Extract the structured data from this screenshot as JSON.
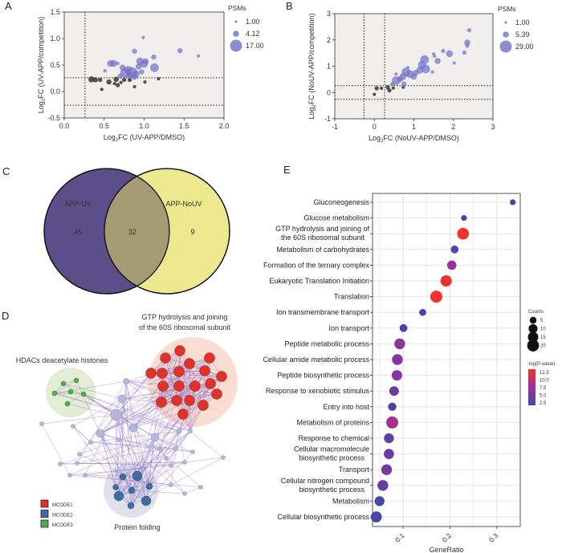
{
  "panels": {
    "A": {
      "letter": "A"
    },
    "B": {
      "letter": "B"
    },
    "C": {
      "letter": "C"
    },
    "D": {
      "letter": "D"
    },
    "E": {
      "letter": "E"
    }
  },
  "colors": {
    "blue_points": "#6f6fc7",
    "dark_points": "#3a3530",
    "venn_left": "#5b4f8a",
    "venn_right": "#ece98e",
    "venn_overlap": "#a49a74",
    "mcode1": "#e0312b",
    "mcode2": "#3e6d9e",
    "mcode3": "#4caf46",
    "network_node": "#b3b8db",
    "edge": "#8d6cbf",
    "grad_low": "#3d4aa3",
    "grad_mid": "#9b2fa0",
    "grad_high": "#f0332a"
  },
  "chart_data": [
    {
      "id": "A",
      "type": "scatter",
      "title": "",
      "xlabel": "Log2FC (UV-APP/DMSO)",
      "ylabel": "Log2FC (UV-APP/competition)",
      "xlim": [
        0,
        2.0
      ],
      "ylim": [
        -0.5,
        1.5
      ],
      "xticks": [
        "0.0",
        "0.5",
        "1.0",
        "1.5",
        "2.0"
      ],
      "yticks": [
        "-0.5",
        "0.0",
        "0.5",
        "1.0",
        "1.5"
      ],
      "thresholds": {
        "x": [
          0.26
        ],
        "y": [
          0.26,
          -0.26
        ]
      },
      "legend": {
        "title": "PSMs",
        "sizes": [
          "1.00",
          "4.12",
          "17.00"
        ],
        "position": "right"
      },
      "points": [
        {
          "x": 0.99,
          "y": 1.02,
          "s": 2,
          "g": "sig"
        },
        {
          "x": 0.88,
          "y": 0.76,
          "s": 4,
          "g": "sig"
        },
        {
          "x": 1.45,
          "y": 0.77,
          "s": 4,
          "g": "sig"
        },
        {
          "x": 1.68,
          "y": 0.67,
          "s": 2,
          "g": "sig"
        },
        {
          "x": 0.58,
          "y": 0.53,
          "s": 6,
          "g": "sig"
        },
        {
          "x": 0.62,
          "y": 0.53,
          "s": 6,
          "g": "sig"
        },
        {
          "x": 0.67,
          "y": 0.53,
          "s": 2,
          "g": "sig"
        },
        {
          "x": 0.51,
          "y": 0.39,
          "s": 2,
          "g": "sig"
        },
        {
          "x": 0.73,
          "y": 0.45,
          "s": 5,
          "g": "sig"
        },
        {
          "x": 0.76,
          "y": 0.35,
          "s": 9,
          "g": "sig"
        },
        {
          "x": 0.8,
          "y": 0.41,
          "s": 7,
          "g": "sig"
        },
        {
          "x": 0.85,
          "y": 0.36,
          "s": 10,
          "g": "sig"
        },
        {
          "x": 0.9,
          "y": 0.33,
          "s": 6,
          "g": "sig"
        },
        {
          "x": 0.93,
          "y": 0.47,
          "s": 5,
          "g": "sig"
        },
        {
          "x": 0.95,
          "y": 0.57,
          "s": 7,
          "g": "sig"
        },
        {
          "x": 1.0,
          "y": 0.52,
          "s": 7,
          "g": "sig"
        },
        {
          "x": 1.02,
          "y": 0.57,
          "s": 5,
          "g": "sig"
        },
        {
          "x": 1.12,
          "y": 0.65,
          "s": 4,
          "g": "sig"
        },
        {
          "x": 1.13,
          "y": 0.45,
          "s": 8,
          "g": "sig"
        },
        {
          "x": 0.97,
          "y": 0.37,
          "s": 4,
          "g": "sig"
        },
        {
          "x": 0.7,
          "y": 0.29,
          "s": 4,
          "g": "sig"
        },
        {
          "x": 0.88,
          "y": 0.27,
          "s": 4,
          "g": "sig"
        },
        {
          "x": 0.82,
          "y": 0.31,
          "s": 6,
          "g": "sig"
        },
        {
          "x": 0.34,
          "y": 0.23,
          "s": 5,
          "g": "ns"
        },
        {
          "x": 0.39,
          "y": 0.22,
          "s": 4,
          "g": "ns"
        },
        {
          "x": 0.45,
          "y": 0.22,
          "s": 3,
          "g": "ns"
        },
        {
          "x": 0.56,
          "y": 0.18,
          "s": 4,
          "g": "ns"
        },
        {
          "x": 0.63,
          "y": 0.15,
          "s": 2,
          "g": "ns"
        },
        {
          "x": 0.65,
          "y": 0.23,
          "s": 4,
          "g": "ns"
        },
        {
          "x": 0.67,
          "y": 0.12,
          "s": 3,
          "g": "ns"
        },
        {
          "x": 0.71,
          "y": 0.17,
          "s": 2,
          "g": "ns"
        },
        {
          "x": 0.75,
          "y": 0.22,
          "s": 3,
          "g": "ns"
        },
        {
          "x": 0.82,
          "y": 0.22,
          "s": 3,
          "g": "ns"
        },
        {
          "x": 0.47,
          "y": 0.04,
          "s": 2,
          "g": "ns"
        },
        {
          "x": 0.88,
          "y": 0.09,
          "s": 2,
          "g": "ns"
        },
        {
          "x": 1.01,
          "y": 0.18,
          "s": 2,
          "g": "ns"
        },
        {
          "x": 1.18,
          "y": 0.24,
          "s": 2,
          "g": "ns"
        }
      ]
    },
    {
      "id": "B",
      "type": "scatter",
      "title": "",
      "xlabel": "Log2FC (NoUV-APP/DMSO)",
      "ylabel": "Log2FC (NoUV-APP/competition)",
      "xlim": [
        -1,
        3
      ],
      "ylim": [
        -1,
        3
      ],
      "xticks": [
        "-1",
        "0",
        "1",
        "2",
        "3"
      ],
      "yticks": [
        "-1",
        "0",
        "1",
        "2",
        "3"
      ],
      "thresholds": {
        "x": [
          -0.26,
          0.26
        ],
        "y": [
          0.26,
          -0.26
        ]
      },
      "legend": {
        "title": "PSMs",
        "sizes": [
          "1.00",
          "5.39",
          "29.00"
        ],
        "position": "right"
      },
      "points": [
        {
          "x": 2.4,
          "y": 2.37,
          "s": 3,
          "g": "sig"
        },
        {
          "x": 2.35,
          "y": 1.9,
          "s": 5,
          "g": "sig"
        },
        {
          "x": 2.35,
          "y": 1.78,
          "s": 3,
          "g": "sig"
        },
        {
          "x": 2.28,
          "y": 1.52,
          "s": 3,
          "g": "sig"
        },
        {
          "x": 2.02,
          "y": 1.12,
          "s": 2,
          "g": "sig"
        },
        {
          "x": 1.9,
          "y": 1.48,
          "s": 6,
          "g": "sig"
        },
        {
          "x": 1.74,
          "y": 1.58,
          "s": 3,
          "g": "sig"
        },
        {
          "x": 1.5,
          "y": 1.47,
          "s": 2,
          "g": "sig"
        },
        {
          "x": 1.52,
          "y": 1.38,
          "s": 2,
          "g": "sig"
        },
        {
          "x": 1.6,
          "y": 1.2,
          "s": 5,
          "g": "sig"
        },
        {
          "x": 1.47,
          "y": 0.78,
          "s": 2,
          "g": "sig"
        },
        {
          "x": 1.27,
          "y": 1.25,
          "s": 8,
          "g": "sig"
        },
        {
          "x": 1.2,
          "y": 1.05,
          "s": 7,
          "g": "sig"
        },
        {
          "x": 1.3,
          "y": 0.9,
          "s": 8,
          "g": "sig"
        },
        {
          "x": 1.15,
          "y": 0.85,
          "s": 6,
          "g": "sig"
        },
        {
          "x": 1.05,
          "y": 0.75,
          "s": 5,
          "g": "sig"
        },
        {
          "x": 0.9,
          "y": 0.7,
          "s": 7,
          "g": "sig"
        },
        {
          "x": 0.8,
          "y": 0.78,
          "s": 8,
          "g": "sig"
        },
        {
          "x": 0.72,
          "y": 0.6,
          "s": 6,
          "g": "sig"
        },
        {
          "x": 0.55,
          "y": 0.45,
          "s": 8,
          "g": "sig"
        },
        {
          "x": 0.65,
          "y": 0.5,
          "s": 5,
          "g": "sig"
        },
        {
          "x": 0.85,
          "y": 0.95,
          "s": 2,
          "g": "sig"
        },
        {
          "x": 0.55,
          "y": 0.7,
          "s": 2,
          "g": "sig"
        },
        {
          "x": 0.45,
          "y": 0.32,
          "s": 3,
          "g": "sig"
        },
        {
          "x": 0.75,
          "y": 0.32,
          "s": 4,
          "g": "sig"
        },
        {
          "x": 1.0,
          "y": 0.6,
          "s": 5,
          "g": "sig"
        },
        {
          "x": 0.06,
          "y": 0.16,
          "s": 3,
          "g": "ns"
        },
        {
          "x": 0.18,
          "y": 0.16,
          "s": 2,
          "g": "ns"
        },
        {
          "x": 0.34,
          "y": 0.2,
          "s": 3,
          "g": "ns"
        },
        {
          "x": 0.38,
          "y": 0.08,
          "s": 3,
          "g": "ns"
        },
        {
          "x": 0.48,
          "y": 0.17,
          "s": 2,
          "g": "ns"
        },
        {
          "x": 0.73,
          "y": 0.2,
          "s": 2,
          "g": "ns"
        },
        {
          "x": 0.0,
          "y": -0.07,
          "s": 2,
          "g": "ns"
        }
      ]
    },
    {
      "id": "C",
      "type": "venn",
      "sets": [
        {
          "name": "APP-UV",
          "only": 45
        },
        {
          "name": "APP-NoUV",
          "only": 9
        }
      ],
      "overlap": 32,
      "labels": {
        "left": "APP-UV",
        "right": "APP-NoUV",
        "left_count": "45",
        "overlap_count": "32",
        "right_count": "9"
      }
    },
    {
      "id": "E",
      "type": "scatter",
      "title": "",
      "xlabel": "GeneRatio",
      "ylabel": "",
      "xlim": [
        0.035,
        0.35
      ],
      "xticks": [
        "0.1",
        "0.2",
        "0.3"
      ],
      "grid": true,
      "legend_counts": {
        "title": "Counts",
        "values": [
          "5",
          "10",
          "15",
          "20"
        ],
        "position": "right"
      },
      "legend_color": {
        "title": "-log(P-value)",
        "ticks": [
          "12.5",
          "10.0",
          "7.5",
          "5.0",
          "2.5"
        ],
        "range": [
          2.5,
          13.5
        ],
        "position": "right"
      },
      "terms": [
        {
          "label": "Gluconeogenesis",
          "ratio": 0.334,
          "count": 3,
          "logp": 3.0
        },
        {
          "label": "Glucose metabolism",
          "ratio": 0.23,
          "count": 3,
          "logp": 3.0
        },
        {
          "label": "GTP hydrolysis and joining of\nthe 60S ribosomal subunit",
          "ratio": 0.228,
          "count": 20,
          "logp": 13.0
        },
        {
          "label": "Metabolism of carbohydrates",
          "ratio": 0.21,
          "count": 7,
          "logp": 3.8
        },
        {
          "label": "Formation of the ternary complex",
          "ratio": 0.204,
          "count": 11,
          "logp": 7.5
        },
        {
          "label": "Eukaryotic Translation Initiation",
          "ratio": 0.192,
          "count": 18,
          "logp": 12.5
        },
        {
          "label": "Translation",
          "ratio": 0.171,
          "count": 21,
          "logp": 13.0
        },
        {
          "label": "Ion transmembrane transport",
          "ratio": 0.142,
          "count": 5,
          "logp": 3.0
        },
        {
          "label": "Ion transport",
          "ratio": 0.101,
          "count": 7,
          "logp": 3.0
        },
        {
          "label": "Peptide metabolic process",
          "ratio": 0.093,
          "count": 16,
          "logp": 7.0
        },
        {
          "label": "Cellular amide metabolic process",
          "ratio": 0.088,
          "count": 16,
          "logp": 6.5
        },
        {
          "label": "Peptide biosynthetic process",
          "ratio": 0.087,
          "count": 15,
          "logp": 6.5
        },
        {
          "label": "Response to xenobiotic stimulus",
          "ratio": 0.081,
          "count": 12,
          "logp": 5.0
        },
        {
          "label": "Entry into host",
          "ratio": 0.077,
          "count": 8,
          "logp": 3.0
        },
        {
          "label": "Metabolism of proteins",
          "ratio": 0.077,
          "count": 21,
          "logp": 8.5
        },
        {
          "label": "Response to chemical",
          "ratio": 0.07,
          "count": 13,
          "logp": 4.5
        },
        {
          "label": "Cellular macromolecule\nbiosynthetic process",
          "ratio": 0.07,
          "count": 14,
          "logp": 5.0
        },
        {
          "label": "Transport",
          "ratio": 0.065,
          "count": 16,
          "logp": 5.5
        },
        {
          "label": "Cellular nitrogen compound\nbiosynthetic process",
          "ratio": 0.057,
          "count": 16,
          "logp": 5.0
        },
        {
          "label": "Metabolism",
          "ratio": 0.05,
          "count": 13,
          "logp": 3.0
        },
        {
          "label": "Cellular biosynthetic process",
          "ratio": 0.043,
          "count": 17,
          "logp": 3.0
        }
      ]
    }
  ],
  "network": {
    "labels": {
      "mcode1": "GTP hydrolysis and joining\nof the 60S ribosomal subunit",
      "mcode3": "HDACs deacetylate histones",
      "mcode2": "Protein folding"
    },
    "legend": [
      "MCODE1",
      "MCODE2",
      "MCODE3"
    ]
  }
}
